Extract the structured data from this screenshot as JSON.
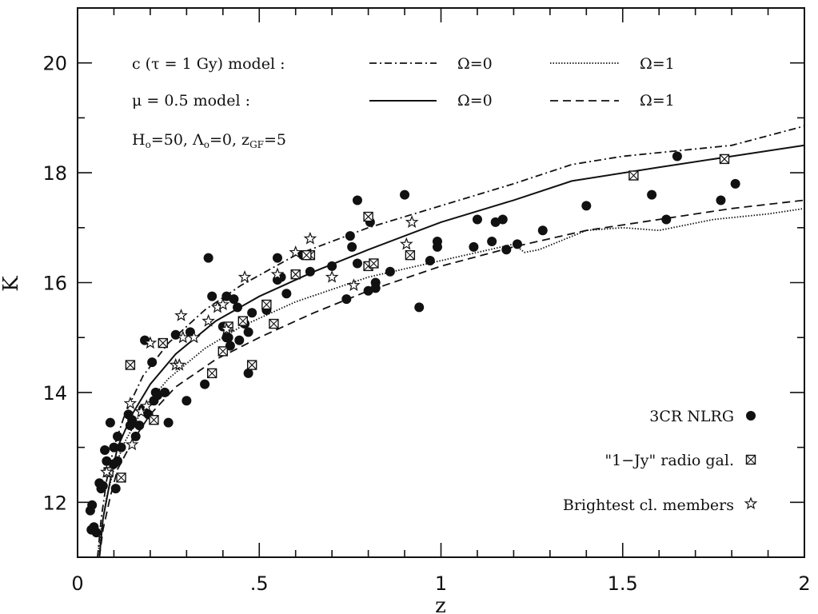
{
  "chart_data": {
    "type": "scatter",
    "title": "",
    "xlabel": "z",
    "ylabel": "K",
    "xlim": [
      0,
      2
    ],
    "ylim": [
      11,
      21
    ],
    "x_ticks": [
      0,
      0.5,
      1,
      1.5,
      2
    ],
    "x_tick_labels": [
      "0",
      ".5",
      "1",
      "1.5",
      "2"
    ],
    "y_ticks": [
      12,
      14,
      16,
      18,
      20
    ],
    "y_tick_labels": [
      "12",
      "14",
      "16",
      "18",
      "20"
    ],
    "grid": false,
    "annotations": {
      "line1_text": "c (τ = 1 Gy) model :",
      "line1_label_a": "Ω=0",
      "line1_label_b": "Ω=1",
      "line2_text": "μ = 0.5 model :",
      "line2_label_a": "Ω=0",
      "line2_label_b": "Ω=1",
      "line3_prefix": "H",
      "line3_sub1": "o",
      "line3_mid": "=50, Λ",
      "line3_sub2": "o",
      "line3_mid2": "=0, z",
      "line3_sub3": "GF",
      "line3_end": "=5"
    },
    "legend": {
      "placement": "bottom-right",
      "entries": [
        {
          "label": "3CR NLRG",
          "marker": "filled-circle"
        },
        {
          "label": "\"1−Jy\" radio gal.",
          "marker": "crossed-square"
        },
        {
          "label": "Brightest cl. members",
          "marker": "star"
        }
      ]
    },
    "series": [
      {
        "name": "3CR NLRG",
        "marker": "filled-circle",
        "points": [
          [
            0.035,
            11.85
          ],
          [
            0.04,
            11.95
          ],
          [
            0.038,
            11.5
          ],
          [
            0.045,
            11.55
          ],
          [
            0.052,
            11.45
          ],
          [
            0.06,
            12.35
          ],
          [
            0.065,
            12.25
          ],
          [
            0.07,
            12.3
          ],
          [
            0.075,
            12.95
          ],
          [
            0.08,
            12.75
          ],
          [
            0.085,
            12.55
          ],
          [
            0.09,
            13.45
          ],
          [
            0.1,
            13.0
          ],
          [
            0.1,
            12.7
          ],
          [
            0.105,
            12.25
          ],
          [
            0.11,
            12.75
          ],
          [
            0.11,
            13.2
          ],
          [
            0.12,
            13.0
          ],
          [
            0.14,
            13.6
          ],
          [
            0.145,
            13.4
          ],
          [
            0.15,
            13.5
          ],
          [
            0.16,
            13.2
          ],
          [
            0.17,
            13.4
          ],
          [
            0.18,
            13.7
          ],
          [
            0.185,
            14.95
          ],
          [
            0.195,
            13.6
          ],
          [
            0.205,
            14.55
          ],
          [
            0.21,
            13.85
          ],
          [
            0.215,
            14.0
          ],
          [
            0.22,
            13.95
          ],
          [
            0.24,
            14.0
          ],
          [
            0.25,
            13.45
          ],
          [
            0.27,
            15.05
          ],
          [
            0.3,
            13.85
          ],
          [
            0.31,
            15.1
          ],
          [
            0.35,
            14.15
          ],
          [
            0.36,
            16.45
          ],
          [
            0.37,
            15.75
          ],
          [
            0.4,
            15.2
          ],
          [
            0.41,
            15.0
          ],
          [
            0.41,
            15.75
          ],
          [
            0.415,
            15.0
          ],
          [
            0.42,
            14.85
          ],
          [
            0.43,
            15.7
          ],
          [
            0.44,
            15.55
          ],
          [
            0.445,
            14.95
          ],
          [
            0.46,
            15.25
          ],
          [
            0.47,
            15.1
          ],
          [
            0.47,
            14.35
          ],
          [
            0.48,
            15.45
          ],
          [
            0.52,
            15.5
          ],
          [
            0.55,
            16.45
          ],
          [
            0.55,
            16.05
          ],
          [
            0.56,
            16.1
          ],
          [
            0.575,
            15.8
          ],
          [
            0.62,
            16.5
          ],
          [
            0.64,
            16.2
          ],
          [
            0.7,
            16.3
          ],
          [
            0.74,
            15.7
          ],
          [
            0.75,
            16.85
          ],
          [
            0.755,
            16.65
          ],
          [
            0.77,
            17.5
          ],
          [
            0.77,
            16.35
          ],
          [
            0.8,
            15.85
          ],
          [
            0.805,
            17.1
          ],
          [
            0.82,
            16.0
          ],
          [
            0.82,
            15.9
          ],
          [
            0.86,
            16.2
          ],
          [
            0.9,
            17.6
          ],
          [
            0.94,
            15.55
          ],
          [
            0.97,
            16.4
          ],
          [
            0.99,
            16.75
          ],
          [
            0.99,
            16.65
          ],
          [
            1.09,
            16.65
          ],
          [
            1.1,
            17.15
          ],
          [
            1.14,
            16.75
          ],
          [
            1.15,
            17.1
          ],
          [
            1.17,
            17.15
          ],
          [
            1.18,
            16.6
          ],
          [
            1.21,
            16.7
          ],
          [
            1.28,
            16.95
          ],
          [
            1.4,
            17.4
          ],
          [
            1.58,
            17.6
          ],
          [
            1.62,
            17.15
          ],
          [
            1.65,
            18.3
          ],
          [
            1.77,
            17.5
          ],
          [
            1.81,
            17.8
          ]
        ]
      },
      {
        "name": "\"1−Jy\" radio gal.",
        "marker": "crossed-square",
        "points": [
          [
            0.085,
            12.55
          ],
          [
            0.12,
            12.45
          ],
          [
            0.145,
            14.5
          ],
          [
            0.21,
            13.5
          ],
          [
            0.235,
            14.9
          ],
          [
            0.37,
            14.35
          ],
          [
            0.4,
            14.75
          ],
          [
            0.415,
            15.2
          ],
          [
            0.455,
            15.3
          ],
          [
            0.48,
            14.5
          ],
          [
            0.52,
            15.6
          ],
          [
            0.54,
            15.25
          ],
          [
            0.6,
            16.15
          ],
          [
            0.64,
            16.5
          ],
          [
            0.63,
            16.5
          ],
          [
            0.8,
            17.2
          ],
          [
            0.8,
            16.3
          ],
          [
            0.815,
            16.35
          ],
          [
            0.915,
            16.5
          ],
          [
            1.53,
            17.95
          ],
          [
            1.78,
            18.25
          ]
        ]
      },
      {
        "name": "Brightest cl. members",
        "marker": "star",
        "points": [
          [
            0.08,
            12.55
          ],
          [
            0.145,
            13.8
          ],
          [
            0.15,
            13.05
          ],
          [
            0.175,
            13.65
          ],
          [
            0.19,
            13.75
          ],
          [
            0.2,
            14.9
          ],
          [
            0.27,
            14.5
          ],
          [
            0.28,
            14.5
          ],
          [
            0.285,
            15.4
          ],
          [
            0.29,
            15.0
          ],
          [
            0.32,
            15.0
          ],
          [
            0.36,
            15.3
          ],
          [
            0.385,
            15.55
          ],
          [
            0.4,
            15.6
          ],
          [
            0.41,
            15.15
          ],
          [
            0.46,
            16.1
          ],
          [
            0.55,
            16.15
          ],
          [
            0.6,
            16.55
          ],
          [
            0.64,
            16.8
          ],
          [
            0.7,
            16.1
          ],
          [
            0.76,
            15.95
          ],
          [
            0.905,
            16.7
          ],
          [
            0.92,
            17.1
          ]
        ]
      },
      {
        "name": "c model Ω=0",
        "line_style": "dash-dot",
        "points": [
          [
            0.055,
            11.0
          ],
          [
            0.065,
            11.7
          ],
          [
            0.08,
            12.4
          ],
          [
            0.1,
            13.0
          ],
          [
            0.13,
            13.6
          ],
          [
            0.18,
            14.3
          ],
          [
            0.25,
            14.9
          ],
          [
            0.35,
            15.5
          ],
          [
            0.45,
            15.95
          ],
          [
            0.6,
            16.5
          ],
          [
            0.8,
            17.0
          ],
          [
            1.0,
            17.4
          ],
          [
            1.2,
            17.8
          ],
          [
            1.36,
            18.15
          ],
          [
            1.5,
            18.3
          ],
          [
            1.8,
            18.5
          ],
          [
            2.0,
            18.85
          ]
        ]
      },
      {
        "name": "c model Ω=1",
        "line_style": "dotted",
        "points": [
          [
            0.055,
            11.0
          ],
          [
            0.065,
            11.5
          ],
          [
            0.08,
            12.1
          ],
          [
            0.1,
            12.6
          ],
          [
            0.13,
            13.1
          ],
          [
            0.18,
            13.7
          ],
          [
            0.25,
            14.25
          ],
          [
            0.35,
            14.8
          ],
          [
            0.45,
            15.2
          ],
          [
            0.6,
            15.65
          ],
          [
            0.8,
            16.1
          ],
          [
            1.0,
            16.4
          ],
          [
            1.1,
            16.55
          ],
          [
            1.2,
            16.7
          ],
          [
            1.23,
            16.55
          ],
          [
            1.27,
            16.6
          ],
          [
            1.4,
            16.95
          ],
          [
            1.5,
            17.0
          ],
          [
            1.6,
            16.95
          ],
          [
            1.75,
            17.15
          ],
          [
            1.9,
            17.25
          ],
          [
            2.0,
            17.35
          ]
        ]
      },
      {
        "name": "μ=0.5 model Ω=0",
        "line_style": "solid",
        "points": [
          [
            0.06,
            11.0
          ],
          [
            0.07,
            11.7
          ],
          [
            0.09,
            12.4
          ],
          [
            0.11,
            13.0
          ],
          [
            0.15,
            13.6
          ],
          [
            0.2,
            14.15
          ],
          [
            0.27,
            14.7
          ],
          [
            0.38,
            15.3
          ],
          [
            0.5,
            15.75
          ],
          [
            0.65,
            16.2
          ],
          [
            0.8,
            16.6
          ],
          [
            1.0,
            17.1
          ],
          [
            1.2,
            17.5
          ],
          [
            1.36,
            17.85
          ],
          [
            1.6,
            18.1
          ],
          [
            1.8,
            18.3
          ],
          [
            2.0,
            18.5
          ]
        ]
      },
      {
        "name": "μ=0.5 model Ω=1",
        "line_style": "dashed",
        "points": [
          [
            0.06,
            11.0
          ],
          [
            0.07,
            11.5
          ],
          [
            0.09,
            12.1
          ],
          [
            0.11,
            12.6
          ],
          [
            0.15,
            13.1
          ],
          [
            0.2,
            13.6
          ],
          [
            0.27,
            14.1
          ],
          [
            0.38,
            14.6
          ],
          [
            0.5,
            15.0
          ],
          [
            0.65,
            15.45
          ],
          [
            0.8,
            15.85
          ],
          [
            1.0,
            16.3
          ],
          [
            1.2,
            16.65
          ],
          [
            1.4,
            16.95
          ],
          [
            1.6,
            17.15
          ],
          [
            1.8,
            17.35
          ],
          [
            2.0,
            17.5
          ]
        ]
      }
    ]
  }
}
